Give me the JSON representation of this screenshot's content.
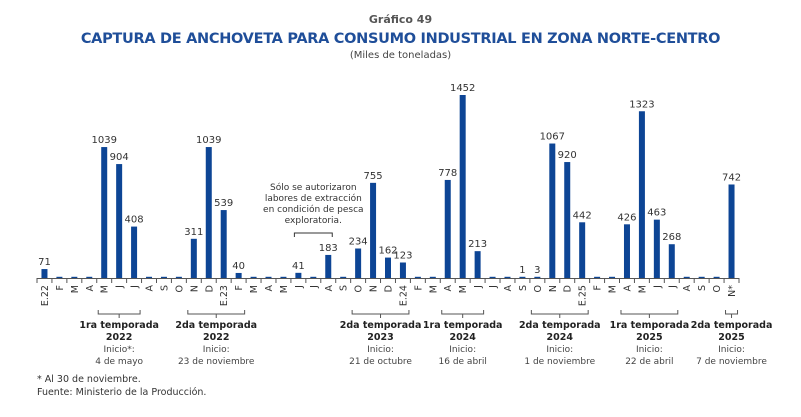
{
  "header": {
    "figure_number": "Gráfico 49",
    "title": "CAPTURA DE ANCHOVETA PARA CONSUMO INDUSTRIAL EN ZONA NORTE-CENTRO",
    "units": "(Miles de toneladas)"
  },
  "chart_data": {
    "type": "bar",
    "title": "CAPTURA DE ANCHOVETA PARA CONSUMO INDUSTRIAL EN ZONA NORTE-CENTRO",
    "ylabel": "Miles de toneladas",
    "xlabel": "",
    "grid": false,
    "ylim": [
      0,
      1452
    ],
    "color": "#0d4595",
    "categories": [
      "E.22",
      "F",
      "M",
      "A",
      "M",
      "J",
      "J",
      "A",
      "S",
      "O",
      "N",
      "D",
      "E.23",
      "F",
      "M",
      "A",
      "M",
      "J",
      "J",
      "A",
      "S",
      "O",
      "N",
      "D",
      "E.24",
      "F",
      "M",
      "A",
      "M",
      "J",
      "J",
      "A",
      "S",
      "O",
      "N",
      "D",
      "E.25",
      "F",
      "M",
      "A",
      "M",
      "J",
      "J",
      "A",
      "S",
      "O",
      "N*"
    ],
    "values": [
      71,
      0,
      0,
      0,
      1039,
      904,
      408,
      0,
      0,
      0,
      311,
      1039,
      539,
      40,
      0,
      0,
      0,
      41,
      0,
      183,
      0,
      234,
      755,
      162,
      123,
      0,
      0,
      778,
      1452,
      213,
      0,
      0,
      1,
      3,
      1067,
      920,
      442,
      0,
      0,
      426,
      1323,
      463,
      268,
      0,
      0,
      0,
      742
    ],
    "labels": [
      "71",
      "",
      "",
      "",
      "1039",
      "904",
      "408",
      "",
      "",
      "",
      "311",
      "1039",
      "539",
      "40",
      "",
      "",
      "",
      "41",
      "",
      "183",
      "",
      "234",
      "755",
      "162",
      "123",
      "",
      "",
      "778",
      "1452",
      "213",
      "",
      "",
      "1",
      "3",
      "1067",
      "920",
      "442",
      "",
      "",
      "426",
      "1323",
      "463",
      "268",
      "",
      "",
      "",
      "742"
    ],
    "annotation": {
      "lines": [
        "Sólo se autorizaron",
        "labores de extracción",
        "en condición de pesca",
        "exploratoria."
      ],
      "from_index": 17,
      "to_index": 19
    },
    "seasons": [
      {
        "name": "1ra temporada",
        "year": "2022",
        "start_label": "Inicio*:",
        "start_date": "4 de mayo",
        "from_index": 4,
        "to_index": 6
      },
      {
        "name": "2da temporada",
        "year": "2022",
        "start_label": "Inicio:",
        "start_date": "23 de noviembre",
        "from_index": 10,
        "to_index": 13
      },
      {
        "name": "2da temporada",
        "year": "2023",
        "start_label": "Inicio:",
        "start_date": "21 de octubre",
        "from_index": 21,
        "to_index": 24
      },
      {
        "name": "1ra temporada",
        "year": "2024",
        "start_label": "Inicio:",
        "start_date": "16 de abril",
        "from_index": 27,
        "to_index": 29
      },
      {
        "name": "2da temporada",
        "year": "2024",
        "start_label": "Inicio:",
        "start_date": "1 de noviembre",
        "from_index": 33,
        "to_index": 36
      },
      {
        "name": "1ra temporada",
        "year": "2025",
        "start_label": "Inicio:",
        "start_date": "22 de abril",
        "from_index": 39,
        "to_index": 42
      },
      {
        "name": "2da temporada",
        "year": "2025",
        "start_label": "Inicio:",
        "start_date": "7 de noviembre",
        "from_index": 46,
        "to_index": 46
      }
    ]
  },
  "footer": {
    "note": "* Al 30 de noviembre.",
    "source": "Fuente: Ministerio de la Producción."
  }
}
